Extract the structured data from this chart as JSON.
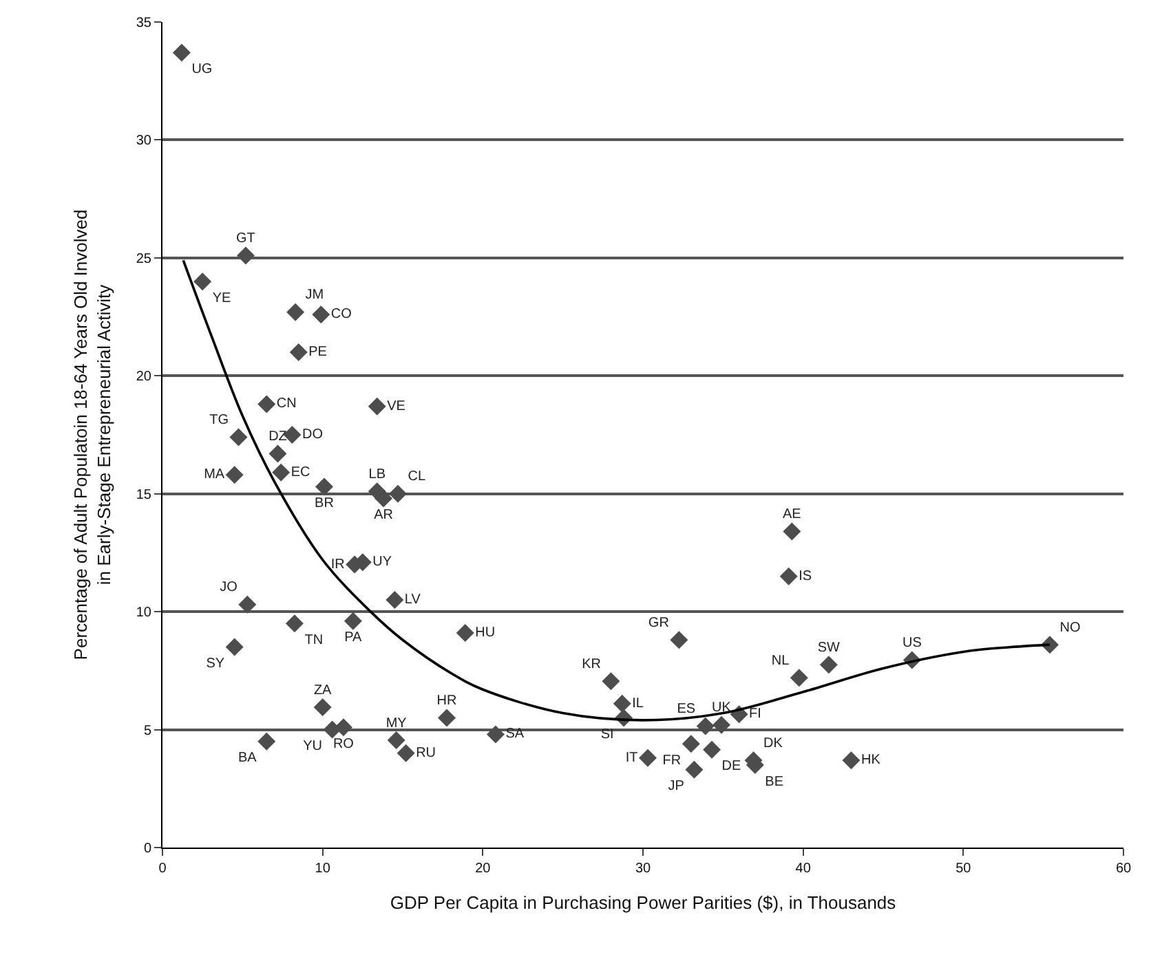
{
  "chart_data": {
    "type": "scatter",
    "xlabel": "GDP Per Capita in Purchasing Power Parities ($), in Thousands",
    "ylabel": "Percentage of Adult Populatoin 18-64 Years Old Involved\nin Early-Stage Entrepreneurial Activity",
    "xlim": [
      0,
      60
    ],
    "xticks": [
      0,
      10,
      20,
      30,
      40,
      50,
      60
    ],
    "ylim": [
      0,
      35
    ],
    "yticks": [
      0,
      5,
      10,
      15,
      20,
      25,
      30,
      35
    ],
    "grid": "y",
    "marker": "diamond",
    "series": [
      {
        "color": "#4d4d4d",
        "x": [
          1.2,
          5.2,
          2.5,
          8.3,
          9.9,
          8.5,
          6.5,
          13.4,
          4.75,
          8.1,
          7.2,
          4.5,
          7.4,
          10.1,
          13.4,
          13.8,
          14.7,
          12.5,
          12.0,
          14.5,
          5.3,
          8.25,
          11.9,
          4.5,
          18.9,
          10.0,
          17.75,
          10.6,
          11.3,
          14.6,
          15.2,
          6.5,
          20.8,
          28.0,
          28.7,
          28.8,
          32.25,
          33.9,
          34.9,
          33.0,
          34.3,
          30.3,
          33.2,
          37.0,
          36.9,
          36.0,
          39.75,
          41.6,
          46.8,
          55.4,
          39.1,
          39.3,
          43.0
        ],
        "values": [
          33.7,
          25.1,
          24.0,
          22.7,
          22.6,
          21.0,
          18.8,
          18.7,
          17.4,
          17.5,
          16.7,
          15.8,
          15.9,
          15.3,
          15.1,
          14.8,
          15.0,
          12.1,
          12.0,
          10.5,
          10.3,
          9.5,
          9.6,
          8.5,
          9.1,
          5.95,
          5.5,
          5.0,
          5.1,
          4.55,
          4.0,
          4.5,
          4.8,
          7.05,
          6.1,
          5.5,
          8.8,
          5.15,
          5.2,
          4.4,
          4.15,
          3.8,
          3.3,
          3.5,
          3.7,
          5.65,
          7.2,
          7.75,
          7.95,
          8.6,
          11.5,
          13.4,
          3.7
        ],
        "value_labels": [
          "UG",
          "GT",
          "YE",
          "JM",
          "CO",
          "PE",
          "CN",
          "VE",
          "TG",
          "DO",
          "DZ",
          "MA",
          "EC",
          "BR",
          "LB",
          "AR",
          "CL",
          "UY",
          "IR",
          "LV",
          "JO",
          "TN",
          "PA",
          "SY",
          "HU",
          "ZA",
          "HR",
          "YU",
          "RO",
          "MY",
          "RU",
          "BA",
          "SA",
          "KR",
          "IL",
          "SI",
          "GR",
          "ES",
          "UK",
          "FR",
          "DE",
          "IT",
          "JP",
          "BE",
          "DK",
          "FI",
          "NL",
          "SW",
          "US",
          "NO",
          "IS",
          "AE",
          "HK"
        ]
      },
      {
        "type": "line",
        "color": "#000000",
        "marker": "none",
        "x": [
          1.3,
          3,
          5,
          7,
          10,
          13,
          15,
          18,
          20,
          25,
          30,
          35,
          40,
          45,
          50,
          53,
          55.4
        ],
        "values": [
          24.9,
          21.8,
          18.3,
          15.5,
          12.2,
          10.0,
          8.8,
          7.4,
          6.7,
          5.7,
          5.4,
          5.7,
          6.6,
          7.6,
          8.3,
          8.5,
          8.6
        ]
      }
    ]
  }
}
